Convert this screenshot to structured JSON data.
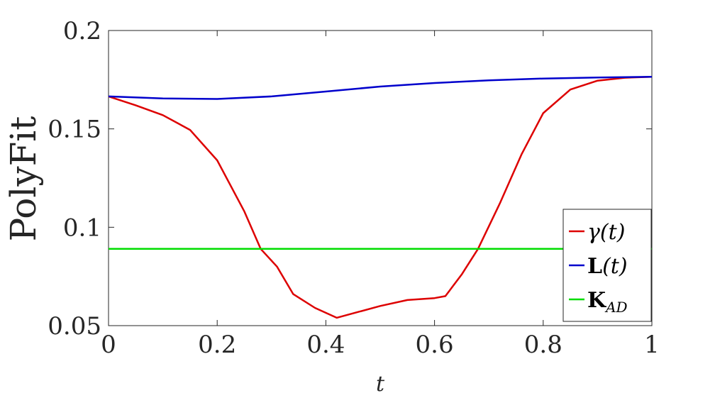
{
  "chart_data": {
    "type": "line",
    "xlabel": "t",
    "ylabel": "PolyFit",
    "xlim": [
      0,
      1
    ],
    "ylim": [
      0.05,
      0.2
    ],
    "x_ticks": [
      0,
      0.2,
      0.4,
      0.6,
      0.8,
      1
    ],
    "x_tick_labels": [
      "0",
      "0.2",
      "0.4",
      "0.6",
      "0.8",
      "1"
    ],
    "y_ticks": [
      0.05,
      0.1,
      0.15,
      0.2
    ],
    "y_tick_labels": [
      "0.05",
      "0.1",
      "0.15",
      "0.2"
    ],
    "grid": false,
    "legend_position": "lower-right",
    "series": [
      {
        "name": "γ(t)",
        "color": "#dd0000",
        "x": [
          0,
          0.05,
          0.1,
          0.15,
          0.2,
          0.25,
          0.28,
          0.31,
          0.34,
          0.38,
          0.42,
          0.46,
          0.5,
          0.55,
          0.6,
          0.62,
          0.65,
          0.68,
          0.72,
          0.76,
          0.8,
          0.85,
          0.9,
          0.95,
          1.0
        ],
        "values": [
          0.1665,
          0.162,
          0.157,
          0.1495,
          0.134,
          0.108,
          0.089,
          0.08,
          0.066,
          0.059,
          0.054,
          0.057,
          0.06,
          0.063,
          0.064,
          0.065,
          0.076,
          0.089,
          0.112,
          0.137,
          0.158,
          0.17,
          0.1745,
          0.176,
          0.1765
        ]
      },
      {
        "name": "L(t)",
        "color": "#0000cc",
        "x": [
          0,
          0.1,
          0.2,
          0.3,
          0.4,
          0.5,
          0.6,
          0.7,
          0.8,
          0.9,
          1.0
        ],
        "values": [
          0.1665,
          0.1655,
          0.1652,
          0.1665,
          0.169,
          0.1715,
          0.1733,
          0.1747,
          0.1756,
          0.1761,
          0.1765
        ]
      },
      {
        "name": "K",
        "subscript": "AD",
        "color": "#00dd00",
        "x": [
          0,
          1
        ],
        "values": [
          0.089,
          0.089
        ]
      }
    ]
  }
}
